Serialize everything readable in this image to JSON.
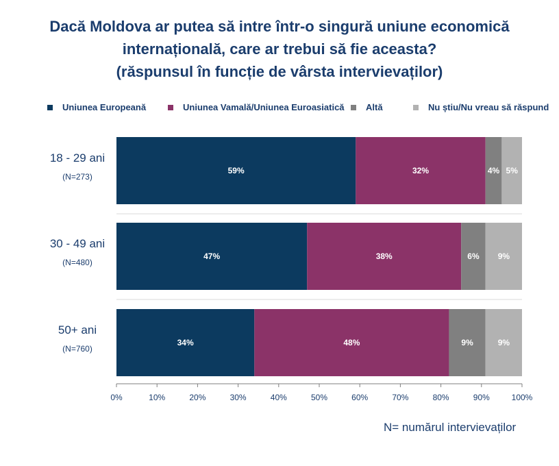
{
  "chart_data": {
    "type": "bar",
    "orientation": "horizontal",
    "stacked": true,
    "title_lines": [
      "Dacă Moldova ar putea să intre într-o singură uniune economică",
      "internațională, care ar trebui să fie aceasta?",
      "(răspunsul în funcție de vârsta intervievaților)"
    ],
    "categories": [
      "18 - 29 ani",
      "30 - 49 ani",
      "50+ ani"
    ],
    "sample_sizes": [
      "(N=273)",
      "(N=480)",
      "(N=760)"
    ],
    "series": [
      {
        "name": "Uniunea Europeană",
        "color": "#0c3a5f",
        "values": [
          59,
          47,
          34
        ],
        "labels": [
          "59%",
          "47%",
          "34%"
        ]
      },
      {
        "name": "Uniunea Vamală/Uniunea Euroasiatică",
        "color": "#8b3368",
        "values": [
          32,
          38,
          48
        ],
        "labels": [
          "32%",
          "38%",
          "48%"
        ]
      },
      {
        "name": "Altă",
        "color": "#808080",
        "values": [
          4,
          6,
          9
        ],
        "labels": [
          "4%",
          "6%",
          "9%"
        ]
      },
      {
        "name": "Nu știu/Nu vreau să răspund",
        "color": "#b2b2b2",
        "values": [
          5,
          9,
          9
        ],
        "labels": [
          "5%",
          "9%",
          "9%"
        ]
      }
    ],
    "xlim": [
      0,
      100
    ],
    "xticks": [
      "0%",
      "10%",
      "20%",
      "30%",
      "40%",
      "50%",
      "60%",
      "70%",
      "80%",
      "90%",
      "100%"
    ],
    "legend_position": "top",
    "grid": false
  },
  "note": "N= numărul intervievaților"
}
